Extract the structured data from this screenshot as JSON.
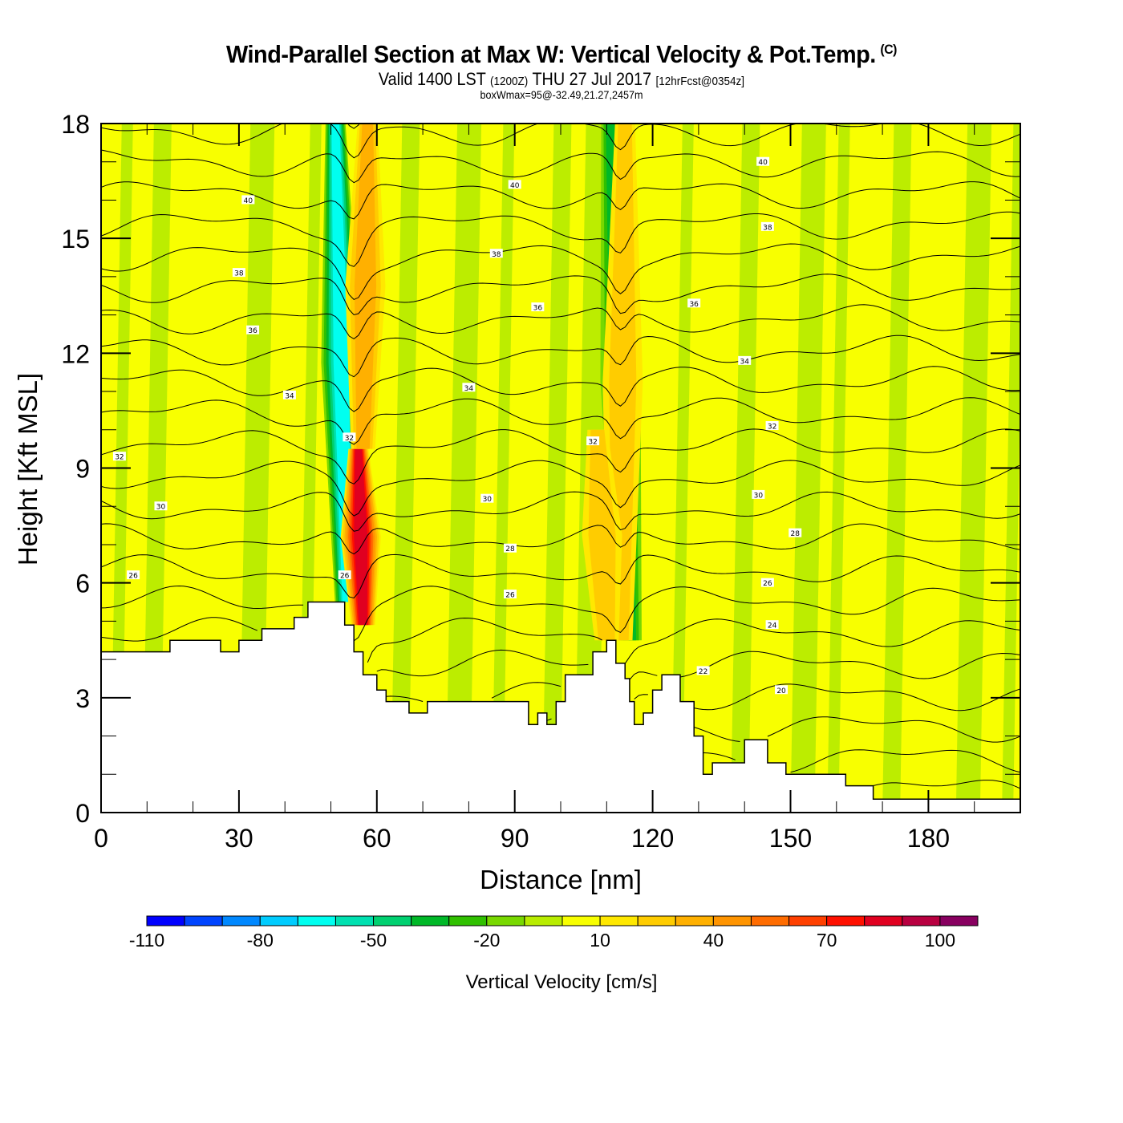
{
  "header": {
    "title": "Wind-Parallel Section at Max W: Vertical Velocity & Pot.Temp.",
    "copyright": "(C)",
    "subtitle_main": "Valid 1400 LST",
    "subtitle_utc": "(1200Z)",
    "subtitle_date": "THU 27 Jul 2017",
    "subtitle_fcst": "[12hrFcst@0354z]",
    "boxinfo": "boxWmax=95@-32.49,21.27,2457m"
  },
  "chart_data": {
    "type": "heatmap",
    "title": "Wind-Parallel Section at Max W: Vertical Velocity & Pot.Temp.",
    "xlabel": "Distance [nm]",
    "ylabel": "Height [Kft MSL]",
    "xlim": [
      0,
      200
    ],
    "ylim": [
      0,
      18
    ],
    "xticks": [
      0,
      30,
      60,
      90,
      120,
      150,
      180
    ],
    "xtick_labels": [
      "0",
      "30",
      "60",
      "90",
      "120",
      "150",
      "180"
    ],
    "yticks": [
      0,
      3,
      6,
      9,
      12,
      15,
      18
    ],
    "ytick_labels": [
      "0",
      "3",
      "6",
      "9",
      "12",
      "15",
      "18"
    ],
    "colorbar": {
      "title": "Vertical Velocity [cm/s]",
      "boundaries": [
        -110,
        -100,
        -90,
        -80,
        -70,
        -60,
        -50,
        -40,
        -30,
        -20,
        -10,
        0,
        10,
        20,
        30,
        40,
        50,
        60,
        70,
        80,
        90,
        100,
        110
      ],
      "labels": [
        "-110",
        "-80",
        "-50",
        "-20",
        "10",
        "40",
        "70",
        "100"
      ],
      "label_values": [
        -110,
        -80,
        -50,
        -20,
        10,
        40,
        70,
        100
      ],
      "colors": [
        "#0000ff",
        "#0044ff",
        "#0088ff",
        "#00ccff",
        "#00fff0",
        "#00e0b0",
        "#00d070",
        "#00b828",
        "#30c000",
        "#78d800",
        "#b8ec00",
        "#f8ff00",
        "#ffe800",
        "#ffcc00",
        "#ffb000",
        "#ff9400",
        "#ff6c00",
        "#ff4000",
        "#ff1000",
        "#e00020",
        "#b80040",
        "#880060"
      ]
    },
    "background_w": 5,
    "terrain_kft": [
      [
        0,
        4.2
      ],
      [
        15,
        4.2
      ],
      [
        15,
        4.5
      ],
      [
        26,
        4.5
      ],
      [
        26,
        4.2
      ],
      [
        30,
        4.2
      ],
      [
        30,
        4.5
      ],
      [
        35,
        4.5
      ],
      [
        35,
        4.8
      ],
      [
        42,
        4.8
      ],
      [
        42,
        5.1
      ],
      [
        45,
        5.1
      ],
      [
        45,
        5.5
      ],
      [
        53,
        5.5
      ],
      [
        53,
        4.9
      ],
      [
        55,
        4.9
      ],
      [
        55,
        4.2
      ],
      [
        57,
        4.2
      ],
      [
        57,
        3.6
      ],
      [
        60,
        3.6
      ],
      [
        60,
        3.2
      ],
      [
        62,
        3.2
      ],
      [
        62,
        2.9
      ],
      [
        67,
        2.9
      ],
      [
        67,
        2.6
      ],
      [
        71,
        2.6
      ],
      [
        71,
        2.9
      ],
      [
        93,
        2.9
      ],
      [
        93,
        2.3
      ],
      [
        95,
        2.3
      ],
      [
        95,
        2.6
      ],
      [
        97,
        2.6
      ],
      [
        97,
        2.3
      ],
      [
        99,
        2.3
      ],
      [
        99,
        2.9
      ],
      [
        101,
        2.9
      ],
      [
        101,
        3.6
      ],
      [
        107,
        3.6
      ],
      [
        107,
        4.2
      ],
      [
        110,
        4.2
      ],
      [
        110,
        4.5
      ],
      [
        112,
        4.5
      ],
      [
        112,
        3.9
      ],
      [
        114,
        3.9
      ],
      [
        114,
        3.5
      ],
      [
        115,
        3.5
      ],
      [
        115,
        2.9
      ],
      [
        116,
        2.9
      ],
      [
        116,
        2.3
      ],
      [
        118,
        2.3
      ],
      [
        118,
        2.6
      ],
      [
        120,
        2.6
      ],
      [
        120,
        3.2
      ],
      [
        122,
        3.2
      ],
      [
        122,
        3.6
      ],
      [
        126,
        3.6
      ],
      [
        126,
        2.9
      ],
      [
        129,
        2.9
      ],
      [
        129,
        2.0
      ],
      [
        131,
        2.0
      ],
      [
        131,
        1.0
      ],
      [
        133,
        1.0
      ],
      [
        133,
        1.3
      ],
      [
        140,
        1.3
      ],
      [
        140,
        1.9
      ],
      [
        145,
        1.9
      ],
      [
        145,
        1.3
      ],
      [
        149,
        1.3
      ],
      [
        149,
        1.0
      ],
      [
        162,
        1.0
      ],
      [
        162,
        0.7
      ],
      [
        168,
        0.7
      ],
      [
        168,
        0.35
      ],
      [
        200,
        0.35
      ]
    ],
    "updrafts": [
      {
        "name": "downdraft-core-1",
        "x_bottom": 53.5,
        "y_bottom": 5.5,
        "x_top": 51,
        "y_top": 18,
        "w": -60
      },
      {
        "name": "updraft-core-1",
        "x_bottom": 57,
        "y_bottom": 4.9,
        "x_top": 56,
        "y_top": 9.5,
        "w": 80
      },
      {
        "name": "updraft-upper-1",
        "x_bottom": 57,
        "y_bottom": 9.5,
        "x_top": 58,
        "y_top": 18,
        "w": 30
      },
      {
        "name": "downdraft-core-2",
        "x_bottom": 115,
        "y_bottom": 4.5,
        "x_top": 111,
        "y_top": 18,
        "w": -30
      },
      {
        "name": "updraft-core-2",
        "x_bottom": 113,
        "y_bottom": 4.5,
        "x_top": 114,
        "y_top": 18,
        "w": 25
      },
      {
        "name": "updraft-core-2b",
        "x_bottom": 110,
        "y_bottom": 4.5,
        "x_top": 108,
        "y_top": 10,
        "w": 25
      }
    ],
    "band_strips": [
      {
        "x": 2,
        "w": -5
      },
      {
        "x": 9,
        "w": -5
      },
      {
        "x": 30,
        "w": -5
      },
      {
        "x": 43,
        "w": -5
      },
      {
        "x": 63,
        "w": -5
      },
      {
        "x": 75,
        "w": -5
      },
      {
        "x": 85,
        "w": -5
      },
      {
        "x": 96,
        "w": -5
      },
      {
        "x": 103,
        "w": -5
      },
      {
        "x": 124,
        "w": -5
      },
      {
        "x": 137,
        "w": -5
      },
      {
        "x": 150,
        "w": -5
      },
      {
        "x": 158,
        "w": -5
      },
      {
        "x": 170,
        "w": -5
      },
      {
        "x": 186,
        "w": -5
      },
      {
        "x": 196,
        "w": -5
      }
    ],
    "theta_levels": [
      19,
      20,
      21,
      22,
      23,
      24,
      25,
      26,
      27,
      28,
      29,
      30,
      31,
      32,
      33,
      34,
      35,
      36,
      37,
      38,
      39,
      40,
      41
    ],
    "contour_labels": [
      {
        "text": "40",
        "x": 32,
        "y": 16.0
      },
      {
        "text": "40",
        "x": 90,
        "y": 16.4
      },
      {
        "text": "40",
        "x": 144,
        "y": 17.0
      },
      {
        "text": "38",
        "x": 30,
        "y": 14.1
      },
      {
        "text": "38",
        "x": 86,
        "y": 14.6
      },
      {
        "text": "38",
        "x": 145,
        "y": 15.3
      },
      {
        "text": "36",
        "x": 33,
        "y": 12.6
      },
      {
        "text": "36",
        "x": 95,
        "y": 13.2
      },
      {
        "text": "36",
        "x": 129,
        "y": 13.3
      },
      {
        "text": "34",
        "x": 41,
        "y": 10.9
      },
      {
        "text": "34",
        "x": 80,
        "y": 11.1
      },
      {
        "text": "34",
        "x": 140,
        "y": 11.8
      },
      {
        "text": "32",
        "x": 4,
        "y": 9.3
      },
      {
        "text": "32",
        "x": 54,
        "y": 9.8
      },
      {
        "text": "32",
        "x": 107,
        "y": 9.7
      },
      {
        "text": "32",
        "x": 146,
        "y": 10.1
      },
      {
        "text": "30",
        "x": 13,
        "y": 8.0
      },
      {
        "text": "30",
        "x": 84,
        "y": 8.2
      },
      {
        "text": "30",
        "x": 143,
        "y": 8.3
      },
      {
        "text": "28",
        "x": 89,
        "y": 6.9
      },
      {
        "text": "28",
        "x": 151,
        "y": 7.3
      },
      {
        "text": "26",
        "x": 7,
        "y": 6.2
      },
      {
        "text": "26",
        "x": 53,
        "y": 6.2
      },
      {
        "text": "26",
        "x": 89,
        "y": 5.7
      },
      {
        "text": "26",
        "x": 145,
        "y": 6.0
      },
      {
        "text": "24",
        "x": 146,
        "y": 4.9
      },
      {
        "text": "22",
        "x": 131,
        "y": 3.7
      },
      {
        "text": "20",
        "x": 148,
        "y": 3.2
      }
    ]
  }
}
